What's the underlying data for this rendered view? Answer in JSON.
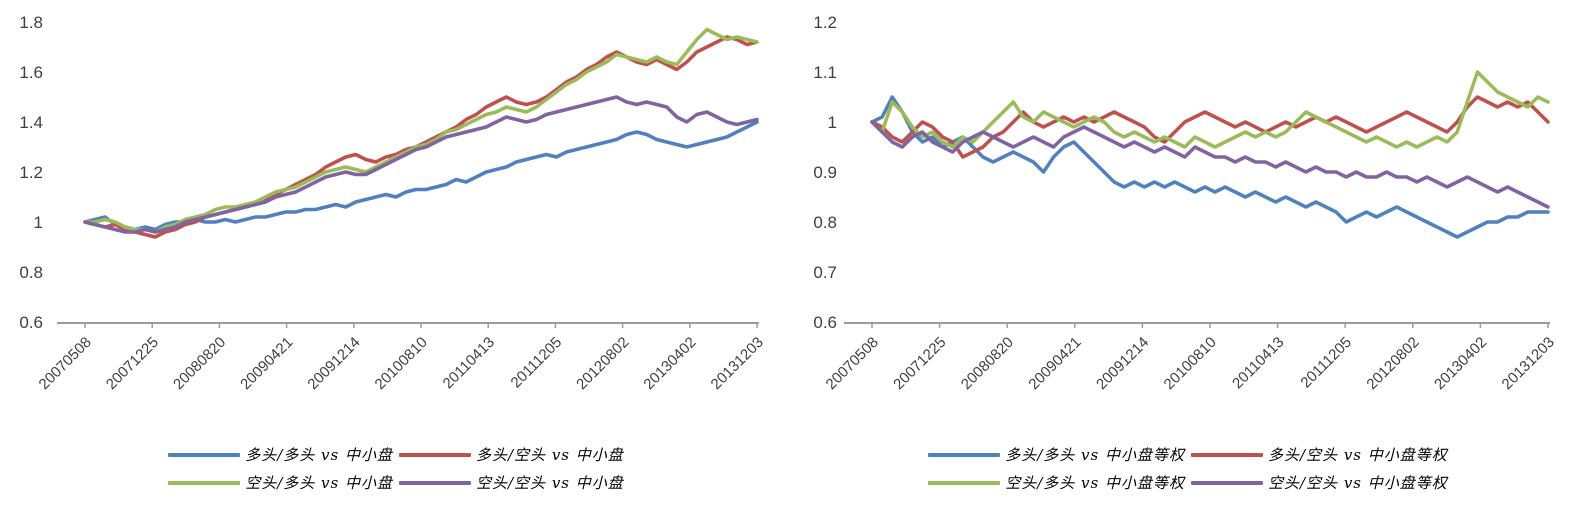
{
  "colors": {
    "blue": "#4F81BD",
    "red": "#C0504D",
    "green": "#9BBB59",
    "purple": "#8064A2",
    "axis_line": "#9b9b9b",
    "tick_text": "#3f3f3f"
  },
  "chart_data": [
    {
      "type": "line",
      "title": "",
      "xlabel": "",
      "ylabel": "",
      "ylim": [
        0.6,
        1.8
      ],
      "yticks": [
        "1.8",
        "1.6",
        "1.4",
        "1.2",
        "1",
        "0.8",
        "0.6"
      ],
      "ytick_values": [
        1.8,
        1.6,
        1.4,
        1.2,
        1.0,
        0.8,
        0.6
      ],
      "grid": false,
      "legend_position": "bottom",
      "x_tick_labels": [
        "20070508",
        "20071225",
        "20080820",
        "20090421",
        "20091214",
        "20100810",
        "20110413",
        "20111205",
        "20120802",
        "20130402",
        "20131203"
      ],
      "series": [
        {
          "name": "多头/多头 vs 中小盘",
          "color": "#4F81BD",
          "values": [
            1.0,
            1.01,
            1.02,
            0.99,
            0.98,
            0.97,
            0.98,
            0.97,
            0.99,
            1.0,
            1.0,
            1.01,
            1.0,
            1.0,
            1.01,
            1.0,
            1.01,
            1.02,
            1.02,
            1.03,
            1.04,
            1.04,
            1.05,
            1.05,
            1.06,
            1.07,
            1.06,
            1.08,
            1.09,
            1.1,
            1.11,
            1.1,
            1.12,
            1.13,
            1.13,
            1.14,
            1.15,
            1.17,
            1.16,
            1.18,
            1.2,
            1.21,
            1.22,
            1.24,
            1.25,
            1.26,
            1.27,
            1.26,
            1.28,
            1.29,
            1.3,
            1.31,
            1.32,
            1.33,
            1.35,
            1.36,
            1.35,
            1.33,
            1.32,
            1.31,
            1.3,
            1.31,
            1.32,
            1.33,
            1.34,
            1.36,
            1.38,
            1.4
          ]
        },
        {
          "name": "多头/空头 vs 中小盘",
          "color": "#C0504D",
          "values": [
            1.0,
            0.99,
            0.98,
            0.99,
            0.97,
            0.96,
            0.95,
            0.94,
            0.96,
            0.97,
            0.99,
            1.0,
            1.02,
            1.03,
            1.04,
            1.05,
            1.06,
            1.07,
            1.09,
            1.11,
            1.13,
            1.15,
            1.17,
            1.19,
            1.22,
            1.24,
            1.26,
            1.27,
            1.25,
            1.24,
            1.26,
            1.27,
            1.29,
            1.3,
            1.32,
            1.34,
            1.36,
            1.38,
            1.41,
            1.43,
            1.46,
            1.48,
            1.5,
            1.48,
            1.47,
            1.48,
            1.5,
            1.53,
            1.56,
            1.58,
            1.61,
            1.63,
            1.66,
            1.68,
            1.66,
            1.64,
            1.63,
            1.65,
            1.63,
            1.61,
            1.64,
            1.68,
            1.7,
            1.72,
            1.74,
            1.73,
            1.71,
            1.72
          ]
        },
        {
          "name": "空头/多头 vs 中小盘",
          "color": "#9BBB59",
          "values": [
            1.0,
            1.0,
            1.01,
            1.0,
            0.98,
            0.97,
            0.97,
            0.96,
            0.98,
            0.99,
            1.01,
            1.02,
            1.03,
            1.05,
            1.06,
            1.06,
            1.07,
            1.08,
            1.1,
            1.12,
            1.13,
            1.14,
            1.16,
            1.18,
            1.2,
            1.21,
            1.22,
            1.21,
            1.2,
            1.22,
            1.24,
            1.26,
            1.28,
            1.3,
            1.31,
            1.33,
            1.36,
            1.37,
            1.39,
            1.41,
            1.43,
            1.44,
            1.46,
            1.45,
            1.44,
            1.46,
            1.49,
            1.52,
            1.55,
            1.57,
            1.6,
            1.62,
            1.64,
            1.67,
            1.66,
            1.65,
            1.64,
            1.66,
            1.64,
            1.63,
            1.68,
            1.73,
            1.77,
            1.75,
            1.73,
            1.74,
            1.73,
            1.72
          ]
        },
        {
          "name": "空头/空头 vs 中小盘",
          "color": "#8064A2",
          "values": [
            1.0,
            0.99,
            0.98,
            0.97,
            0.96,
            0.96,
            0.97,
            0.96,
            0.97,
            0.98,
            1.0,
            1.01,
            1.02,
            1.03,
            1.04,
            1.05,
            1.06,
            1.07,
            1.08,
            1.1,
            1.11,
            1.12,
            1.14,
            1.16,
            1.18,
            1.19,
            1.2,
            1.19,
            1.19,
            1.21,
            1.23,
            1.25,
            1.27,
            1.29,
            1.3,
            1.32,
            1.34,
            1.35,
            1.36,
            1.37,
            1.38,
            1.4,
            1.42,
            1.41,
            1.4,
            1.41,
            1.43,
            1.44,
            1.45,
            1.46,
            1.47,
            1.48,
            1.49,
            1.5,
            1.48,
            1.47,
            1.48,
            1.47,
            1.46,
            1.42,
            1.4,
            1.43,
            1.44,
            1.42,
            1.4,
            1.39,
            1.4,
            1.41
          ]
        }
      ]
    },
    {
      "type": "line",
      "title": "",
      "xlabel": "",
      "ylabel": "",
      "ylim": [
        0.6,
        1.2
      ],
      "yticks": [
        "1.2",
        "1.1",
        "1",
        "0.9",
        "0.8",
        "0.7",
        "0.6"
      ],
      "ytick_values": [
        1.2,
        1.1,
        1.0,
        0.9,
        0.8,
        0.7,
        0.6
      ],
      "grid": false,
      "legend_position": "bottom",
      "x_tick_labels": [
        "20070508",
        "20071225",
        "20080820",
        "20090421",
        "20091214",
        "20100810",
        "20110413",
        "20111205",
        "20120802",
        "20130402",
        "20131203"
      ],
      "series": [
        {
          "name": "多头/多头 vs 中小盘等权",
          "color": "#4F81BD",
          "values": [
            1.0,
            1.01,
            1.05,
            1.02,
            0.98,
            0.96,
            0.97,
            0.95,
            0.96,
            0.97,
            0.95,
            0.93,
            0.92,
            0.93,
            0.94,
            0.93,
            0.92,
            0.9,
            0.93,
            0.95,
            0.96,
            0.94,
            0.92,
            0.9,
            0.88,
            0.87,
            0.88,
            0.87,
            0.88,
            0.87,
            0.88,
            0.87,
            0.86,
            0.87,
            0.86,
            0.87,
            0.86,
            0.85,
            0.86,
            0.85,
            0.84,
            0.85,
            0.84,
            0.83,
            0.84,
            0.83,
            0.82,
            0.8,
            0.81,
            0.82,
            0.81,
            0.82,
            0.83,
            0.82,
            0.81,
            0.8,
            0.79,
            0.78,
            0.77,
            0.78,
            0.79,
            0.8,
            0.8,
            0.81,
            0.81,
            0.82,
            0.82,
            0.82
          ]
        },
        {
          "name": "多头/空头 vs 中小盘等权",
          "color": "#C0504D",
          "values": [
            1.0,
            0.99,
            0.97,
            0.96,
            0.98,
            1.0,
            0.99,
            0.97,
            0.96,
            0.93,
            0.94,
            0.95,
            0.97,
            0.98,
            1.0,
            1.02,
            1.0,
            0.99,
            1.0,
            1.01,
            1.0,
            1.01,
            1.0,
            1.01,
            1.02,
            1.01,
            1.0,
            0.99,
            0.97,
            0.96,
            0.98,
            1.0,
            1.01,
            1.02,
            1.01,
            1.0,
            0.99,
            1.0,
            0.99,
            0.98,
            0.99,
            1.0,
            0.99,
            1.0,
            1.01,
            1.0,
            1.01,
            1.0,
            0.99,
            0.98,
            0.99,
            1.0,
            1.01,
            1.02,
            1.01,
            1.0,
            0.99,
            0.98,
            1.0,
            1.03,
            1.05,
            1.04,
            1.03,
            1.04,
            1.03,
            1.04,
            1.02,
            1.0
          ]
        },
        {
          "name": "空头/多头 vs 中小盘等权",
          "color": "#9BBB59",
          "values": [
            1.0,
            0.98,
            1.04,
            1.02,
            0.99,
            0.97,
            0.98,
            0.96,
            0.95,
            0.97,
            0.96,
            0.98,
            1.0,
            1.02,
            1.04,
            1.01,
            1.0,
            1.02,
            1.01,
            1.0,
            0.99,
            1.0,
            1.01,
            1.0,
            0.98,
            0.97,
            0.98,
            0.97,
            0.96,
            0.97,
            0.96,
            0.95,
            0.97,
            0.96,
            0.95,
            0.96,
            0.97,
            0.98,
            0.97,
            0.98,
            0.97,
            0.98,
            1.0,
            1.02,
            1.01,
            1.0,
            0.99,
            0.98,
            0.97,
            0.96,
            0.97,
            0.96,
            0.95,
            0.96,
            0.95,
            0.96,
            0.97,
            0.96,
            0.98,
            1.04,
            1.1,
            1.08,
            1.06,
            1.05,
            1.04,
            1.03,
            1.05,
            1.04
          ]
        },
        {
          "name": "空头/空头 vs 中小盘等权",
          "color": "#8064A2",
          "values": [
            1.0,
            0.98,
            0.96,
            0.95,
            0.97,
            0.98,
            0.96,
            0.95,
            0.94,
            0.96,
            0.97,
            0.98,
            0.97,
            0.96,
            0.95,
            0.96,
            0.97,
            0.96,
            0.95,
            0.97,
            0.98,
            0.99,
            0.98,
            0.97,
            0.96,
            0.95,
            0.96,
            0.95,
            0.94,
            0.95,
            0.94,
            0.93,
            0.95,
            0.94,
            0.93,
            0.93,
            0.92,
            0.93,
            0.92,
            0.92,
            0.91,
            0.92,
            0.91,
            0.9,
            0.91,
            0.9,
            0.9,
            0.89,
            0.9,
            0.89,
            0.89,
            0.9,
            0.89,
            0.89,
            0.88,
            0.89,
            0.88,
            0.87,
            0.88,
            0.89,
            0.88,
            0.87,
            0.86,
            0.87,
            0.86,
            0.85,
            0.84,
            0.83
          ]
        }
      ]
    }
  ]
}
